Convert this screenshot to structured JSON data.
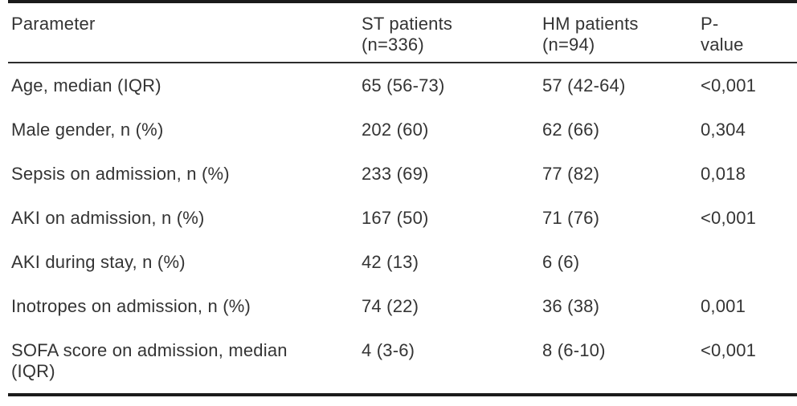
{
  "table": {
    "columns": [
      {
        "line1": "Parameter",
        "line2": ""
      },
      {
        "line1": "ST patients",
        "line2": "(n=336)"
      },
      {
        "line1": "HM patients",
        "line2": "(n=94)"
      },
      {
        "line1": "P-",
        "line2": "value"
      }
    ],
    "rows": [
      {
        "param": "Age, median (IQR)",
        "param2": "",
        "st": "65 (56-73)",
        "hm": "57 (42-64)",
        "p": "<0,001"
      },
      {
        "param": "Male gender, n (%)",
        "param2": "",
        "st": "202 (60)",
        "hm": "62 (66)",
        "p": "0,304"
      },
      {
        "param": "Sepsis on admission, n (%)",
        "param2": "",
        "st": "233 (69)",
        "hm": "77 (82)",
        "p": "0,018"
      },
      {
        "param": "AKI on admission, n (%)",
        "param2": "",
        "st": "167 (50)",
        "hm": "71 (76)",
        "p": "<0,001"
      },
      {
        "param": "AKI during stay, n (%)",
        "param2": "",
        "st": "42 (13)",
        "hm": "6 (6)",
        "p": ""
      },
      {
        "param": "Inotropes on admission, n (%)",
        "param2": "",
        "st": "74 (22)",
        "hm": "36 (38)",
        "p": "0,001"
      },
      {
        "param": "SOFA score on admission, median",
        "param2": "(IQR)",
        "st": "4 (3-6)",
        "hm": "8 (6-10)",
        "p": "<0,001"
      }
    ],
    "colors": {
      "rule": "#1b1b1b",
      "text": "#343434"
    }
  }
}
